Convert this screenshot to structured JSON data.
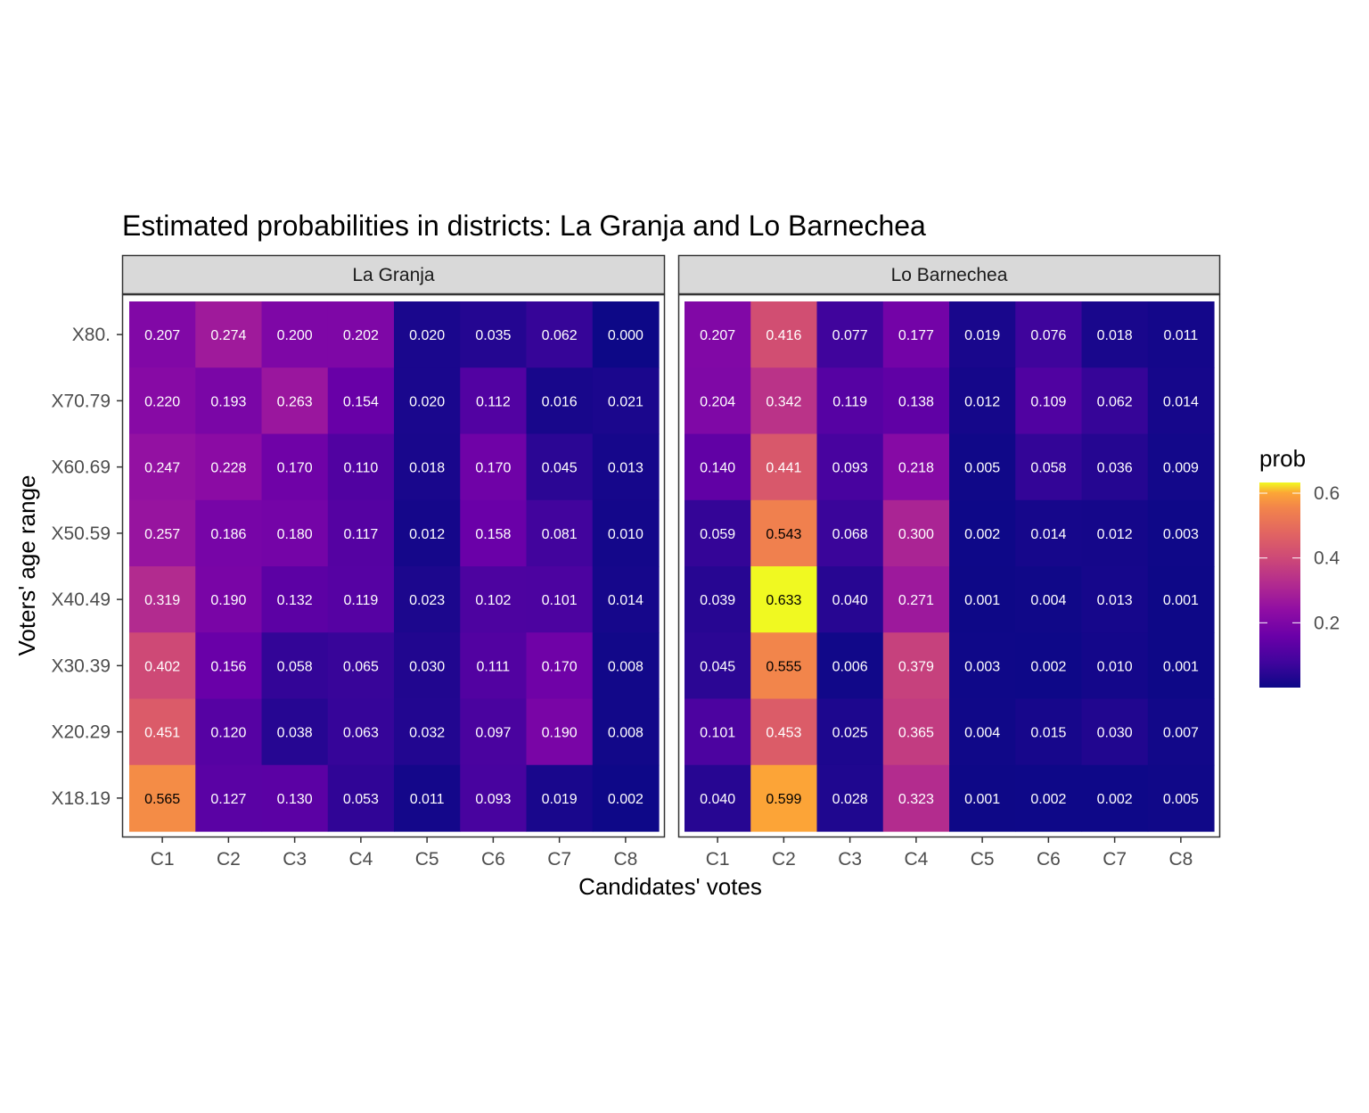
{
  "chart_data": {
    "type": "heatmap",
    "title": "Estimated probabilities in districts: La Granja and Lo Barnechea",
    "xlabel": "Candidates' votes",
    "ylabel": "Voters' age range",
    "x_categories": [
      "C1",
      "C2",
      "C3",
      "C4",
      "C5",
      "C6",
      "C7",
      "C8"
    ],
    "y_categories": [
      "X80.",
      "X70.79",
      "X60.69",
      "X50.59",
      "X40.49",
      "X30.39",
      "X20.29",
      "X18.19"
    ],
    "color_scale": "plasma",
    "value_range": [
      0.0,
      0.633
    ],
    "legend": {
      "title": "prob",
      "ticks": [
        {
          "value": 0.6,
          "label": "0.6"
        },
        {
          "value": 0.4,
          "label": "0.4"
        },
        {
          "value": 0.2,
          "label": "0.2"
        }
      ],
      "position": "right"
    },
    "panels": [
      {
        "name": "La Granja",
        "values": [
          [
            "0.207",
            "0.274",
            "0.200",
            "0.202",
            "0.020",
            "0.035",
            "0.062",
            "0.000"
          ],
          [
            "0.220",
            "0.193",
            "0.263",
            "0.154",
            "0.020",
            "0.112",
            "0.016",
            "0.021"
          ],
          [
            "0.247",
            "0.228",
            "0.170",
            "0.110",
            "0.018",
            "0.170",
            "0.045",
            "0.013"
          ],
          [
            "0.257",
            "0.186",
            "0.180",
            "0.117",
            "0.012",
            "0.158",
            "0.081",
            "0.010"
          ],
          [
            "0.319",
            "0.190",
            "0.132",
            "0.119",
            "0.023",
            "0.102",
            "0.101",
            "0.014"
          ],
          [
            "0.402",
            "0.156",
            "0.058",
            "0.065",
            "0.030",
            "0.111",
            "0.170",
            "0.008"
          ],
          [
            "0.451",
            "0.120",
            "0.038",
            "0.063",
            "0.032",
            "0.097",
            "0.190",
            "0.008"
          ],
          [
            "0.565",
            "0.127",
            "0.130",
            "0.053",
            "0.011",
            "0.093",
            "0.019",
            "0.002"
          ]
        ]
      },
      {
        "name": "Lo Barnechea",
        "values": [
          [
            "0.207",
            "0.416",
            "0.077",
            "0.177",
            "0.019",
            "0.076",
            "0.018",
            "0.011"
          ],
          [
            "0.204",
            "0.342",
            "0.119",
            "0.138",
            "0.012",
            "0.109",
            "0.062",
            "0.014"
          ],
          [
            "0.140",
            "0.441",
            "0.093",
            "0.218",
            "0.005",
            "0.058",
            "0.036",
            "0.009"
          ],
          [
            "0.059",
            "0.543",
            "0.068",
            "0.300",
            "0.002",
            "0.014",
            "0.012",
            "0.003"
          ],
          [
            "0.039",
            "0.633",
            "0.040",
            "0.271",
            "0.001",
            "0.004",
            "0.013",
            "0.001"
          ],
          [
            "0.045",
            "0.555",
            "0.006",
            "0.379",
            "0.003",
            "0.002",
            "0.010",
            "0.001"
          ],
          [
            "0.101",
            "0.453",
            "0.025",
            "0.365",
            "0.004",
            "0.015",
            "0.030",
            "0.007"
          ],
          [
            "0.040",
            "0.599",
            "0.028",
            "0.323",
            "0.001",
            "0.002",
            "0.002",
            "0.005"
          ]
        ]
      }
    ]
  }
}
